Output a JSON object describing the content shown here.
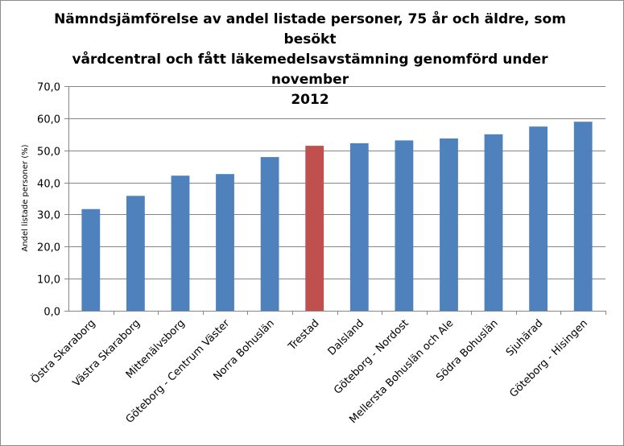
{
  "chart_data": {
    "type": "bar",
    "title": "Nämndsjämförelse av andel listade personer, 75 år och äldre, som besökt vårdcentral och fått läkemedelsavstämning genomförd under november 2012",
    "title_lines": [
      "Nämndsjämförelse av andel listade personer, 75 år och äldre, som besökt",
      "vårdcentral och fått läkemedelsavstämning genomförd under november",
      "2012"
    ],
    "xlabel": "",
    "ylabel": "Andel listade personer (%)",
    "ylim": [
      0,
      70
    ],
    "ytick_values": [
      0,
      10,
      20,
      30,
      40,
      50,
      60,
      70
    ],
    "ytick_labels": [
      "0,0",
      "10,0",
      "20,0",
      "30,0",
      "40,0",
      "50,0",
      "60,0",
      "70,0"
    ],
    "grid": true,
    "legend": "none",
    "categories": [
      "Östra Skaraborg",
      "Västra Skaraborg",
      "Mittenälvsborg",
      "Göteborg - Centrum Väster",
      "Norra Bohuslän",
      "Trestad",
      "Dalsland",
      "Göteborg - Nordost",
      "Mellersta Bohuslän och Ale",
      "Södra Bohuslän",
      "Sjuhärad",
      "Göteborg - Hisingen"
    ],
    "values": [
      31.7,
      35.8,
      42.1,
      42.6,
      47.9,
      51.4,
      52.2,
      53.1,
      53.7,
      55.0,
      57.4,
      58.9
    ],
    "highlight_category": "Trestad",
    "colors": {
      "bar": "#4F81BD",
      "highlight": "#C0504D",
      "grid": "#868686",
      "axis": "#868686"
    }
  }
}
